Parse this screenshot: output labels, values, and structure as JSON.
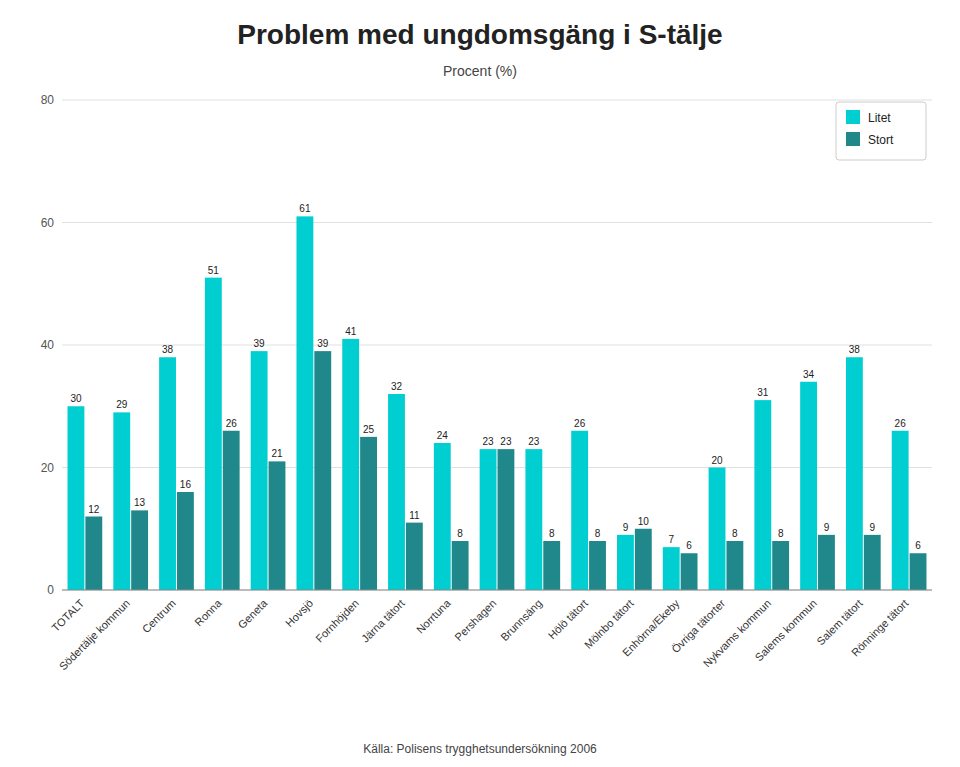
{
  "chart_data": {
    "type": "bar",
    "title": "Problem med ungdomsgäng i S-tälje",
    "subtitle": "Procent (%)",
    "caption": "Källa: Polisens trygghetsundersökning 2006",
    "categories": [
      "TOTALT",
      "Södertälje kommun",
      "Centrum",
      "Ronna",
      "Geneta",
      "Hovsjö",
      "Fornhöjden",
      "Järna tätort",
      "Norrtuna",
      "Pershagen",
      "Brunnsäng",
      "Hölö tätort",
      "Mölnbo tätort",
      "Enhörna/Ekeby",
      "Övriga tätorter",
      "Nykvams kommun",
      "Salems kommun",
      "Salem tätort",
      "Rönninge tätort"
    ],
    "series": [
      {
        "name": "Litet",
        "color": "#00CED1",
        "values": [
          30,
          29,
          38,
          51,
          39,
          61,
          41,
          32,
          24,
          23,
          23,
          26,
          9,
          7,
          20,
          31,
          34,
          38,
          26
        ]
      },
      {
        "name": "Stort",
        "color": "#20888A",
        "values": [
          12,
          13,
          16,
          26,
          21,
          39,
          25,
          11,
          8,
          23,
          8,
          8,
          10,
          6,
          8,
          8,
          9,
          9,
          6
        ]
      }
    ],
    "ylim": [
      0,
      80
    ],
    "yticks": [
      0,
      20,
      40,
      60,
      80
    ],
    "grid": true,
    "legend": "top-right",
    "data_labels": true
  }
}
